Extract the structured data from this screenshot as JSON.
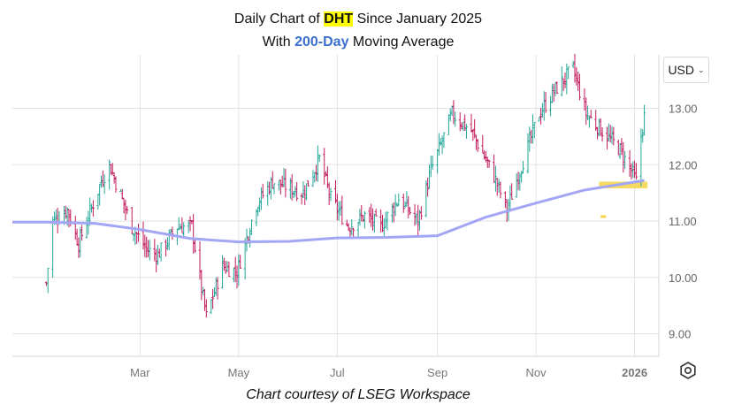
{
  "title_line1": {
    "prefix": "Daily Chart of ",
    "ticker": "DHT",
    "suffix": " Since January 2025"
  },
  "title_line2": {
    "prefix": "With ",
    "period": "200-Day",
    "suffix": " Moving Average"
  },
  "currency_selector": {
    "label": "USD",
    "icon": "chevron-down-icon"
  },
  "settings_icon": "gear-icon",
  "caption": "Chart courtesy of LSEG Workspace",
  "colors": {
    "up": "#26a69a",
    "down": "#c2185b",
    "ma": "#a3a6f5",
    "highlight": "#f5d547",
    "grid": "#e3e3e3"
  },
  "chart_data": {
    "type": "ohlc",
    "title": "Daily Chart of DHT Since January 2025",
    "subtitle": "With 200-Day Moving Average",
    "x_ticks": [
      "Mar",
      "May",
      "Jul",
      "Sep",
      "Nov",
      "2026"
    ],
    "y_ticks": [
      "9.00",
      "10.00",
      "11.00",
      "12.00",
      "13.00"
    ],
    "ylim": [
      8.6,
      13.95
    ],
    "grid": true,
    "price_path": [
      [
        "2025-01-02",
        9.9
      ],
      [
        "2025-01-06",
        11.0
      ],
      [
        "2025-01-15",
        11.2
      ],
      [
        "2025-01-22",
        10.6
      ],
      [
        "2025-02-05",
        11.7
      ],
      [
        "2025-02-10",
        12.0
      ],
      [
        "2025-02-24",
        10.9
      ],
      [
        "2025-03-05",
        10.5
      ],
      [
        "2025-03-12",
        10.4
      ],
      [
        "2025-03-24",
        10.9
      ],
      [
        "2025-04-02",
        10.9
      ],
      [
        "2025-04-08",
        9.8
      ],
      [
        "2025-04-11",
        9.3
      ],
      [
        "2025-04-21",
        10.2
      ],
      [
        "2025-04-30",
        10.1
      ],
      [
        "2025-05-12",
        11.3
      ],
      [
        "2025-05-22",
        11.7
      ],
      [
        "2025-06-10",
        11.5
      ],
      [
        "2025-06-20",
        12.1
      ],
      [
        "2025-06-27",
        11.4
      ],
      [
        "2025-07-08",
        10.9
      ],
      [
        "2025-07-18",
        11.1
      ],
      [
        "2025-07-28",
        10.9
      ],
      [
        "2025-08-08",
        11.4
      ],
      [
        "2025-08-20",
        11.0
      ],
      [
        "2025-08-28",
        11.9
      ],
      [
        "2025-09-05",
        12.5
      ],
      [
        "2025-09-10",
        12.9
      ],
      [
        "2025-09-22",
        12.6
      ],
      [
        "2025-10-06",
        11.8
      ],
      [
        "2025-10-14",
        11.2
      ],
      [
        "2025-10-22",
        11.9
      ],
      [
        "2025-11-03",
        12.9
      ],
      [
        "2025-11-12",
        13.3
      ],
      [
        "2025-11-24",
        13.7
      ],
      [
        "2025-12-02",
        12.9
      ],
      [
        "2025-12-12",
        12.6
      ],
      [
        "2025-12-22",
        12.3
      ],
      [
        "2025-12-30",
        11.9
      ],
      [
        "2026-01-02",
        11.7
      ],
      [
        "2026-01-05",
        12.5
      ],
      [
        "2026-01-07",
        12.85
      ]
    ],
    "moving_average_200d": [
      [
        "2025-01-01",
        10.98
      ],
      [
        "2025-02-01",
        10.96
      ],
      [
        "2025-03-01",
        10.85
      ],
      [
        "2025-04-01",
        10.69
      ],
      [
        "2025-05-01",
        10.63
      ],
      [
        "2025-06-01",
        10.64
      ],
      [
        "2025-07-01",
        10.7
      ],
      [
        "2025-08-01",
        10.71
      ],
      [
        "2025-09-01",
        10.74
      ],
      [
        "2025-10-01",
        11.07
      ],
      [
        "2025-11-01",
        11.32
      ],
      [
        "2025-12-01",
        11.55
      ],
      [
        "2026-01-07",
        11.72
      ]
    ],
    "highlight_band": {
      "start": "2025-12-10",
      "end": "2026-01-09",
      "low": 11.58,
      "high": 11.7
    },
    "highlight_marker": {
      "date": "2025-12-11",
      "value": 11.08
    }
  }
}
